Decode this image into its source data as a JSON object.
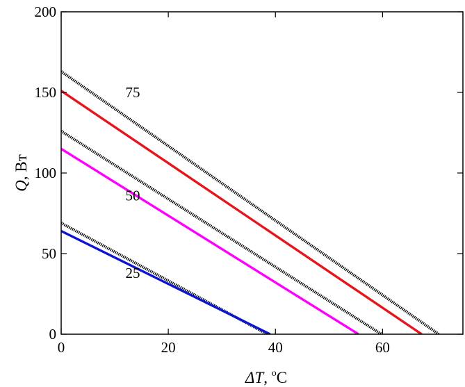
{
  "chart_data": {
    "type": "line",
    "title": "",
    "xlabel_prefix": "ΔT",
    "xlabel_suffix": ", ",
    "xlabel_unit_sup": "o",
    "xlabel_unit": "C",
    "ylabel_var": "Q",
    "ylabel_unit": ", Вт",
    "xlim": [
      0,
      75
    ],
    "ylim": [
      0,
      200
    ],
    "xticks": [
      0,
      20,
      40,
      60
    ],
    "yticks": [
      0,
      50,
      100,
      150,
      200
    ],
    "grid": false,
    "series": [
      {
        "style": "dotted",
        "color": "#000000",
        "points": [
          [
            0,
            163
          ],
          [
            70.5,
            0
          ]
        ]
      },
      {
        "style": "solid",
        "color": "#e8141b",
        "points": [
          [
            0,
            151
          ],
          [
            67.3,
            0
          ]
        ]
      },
      {
        "style": "dotted",
        "color": "#000000",
        "points": [
          [
            0,
            126
          ],
          [
            59.8,
            0
          ]
        ]
      },
      {
        "style": "solid",
        "color": "#ff00ff",
        "points": [
          [
            0,
            115
          ],
          [
            55.5,
            0
          ]
        ]
      },
      {
        "style": "dotted",
        "color": "#000000",
        "points": [
          [
            0,
            69
          ],
          [
            38.5,
            0
          ]
        ]
      },
      {
        "style": "solid",
        "color": "#0c14d4",
        "points": [
          [
            0,
            64
          ],
          [
            39.0,
            0
          ]
        ]
      }
    ],
    "annotations": [
      {
        "text": "75",
        "x": 12,
        "y": 147
      },
      {
        "text": "50",
        "x": 12,
        "y": 83
      },
      {
        "text": "25",
        "x": 12,
        "y": 35
      }
    ]
  }
}
